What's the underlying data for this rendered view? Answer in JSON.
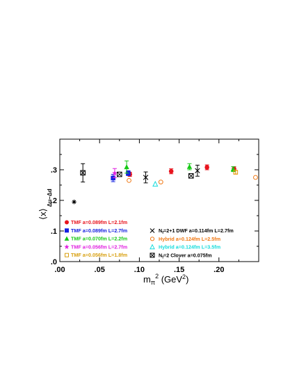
{
  "chart_data": {
    "type": "scatter",
    "title": "",
    "xlabel": "m",
    "xlabel_sub": "π",
    "xlabel_sup": "2",
    "xlabel_unit": " (GeV",
    "xlabel_unit_sup": "2",
    "xlabel_unit_close": ")",
    "ylabel": "⟨x⟩",
    "ylabel_sub": "Δu−Δd",
    "xlim": [
      0,
      0.25
    ],
    "ylim": [
      0,
      0.4
    ],
    "xticks": [
      0,
      0.05,
      0.1,
      0.15,
      0.2
    ],
    "xtick_labels": [
      ".00",
      ".05",
      ".10",
      ".15",
      ".20"
    ],
    "yticks": [
      0,
      0.1,
      0.2,
      0.3
    ],
    "ytick_labels": [
      ".0",
      ".1",
      ".2",
      ".3"
    ],
    "grid": false,
    "legend_position": "bottom",
    "series": [
      {
        "name": "TMF a=0.089fm L=2.1fm",
        "color": "#e8141e",
        "marker": "circle-filled",
        "points": [
          {
            "x": 0.088,
            "y": 0.285,
            "err": 0.007
          },
          {
            "x": 0.14,
            "y": 0.295,
            "err": 0.008
          },
          {
            "x": 0.185,
            "y": 0.308,
            "err": 0.008
          },
          {
            "x": 0.219,
            "y": 0.303,
            "err": 0.007
          }
        ]
      },
      {
        "name": "TMF a=0.089fm L=2.7fm",
        "color": "#1420e0",
        "marker": "square-filled",
        "points": [
          {
            "x": 0.067,
            "y": 0.273,
            "err": 0.012
          },
          {
            "x": 0.086,
            "y": 0.289,
            "err": 0.008
          }
        ]
      },
      {
        "name": "TMF a=0.070fm L=2.2fm",
        "color": "#14c814",
        "marker": "triangle-filled",
        "points": [
          {
            "x": 0.084,
            "y": 0.309,
            "err": 0.02
          },
          {
            "x": 0.163,
            "y": 0.31,
            "err": 0.01
          },
          {
            "x": 0.218,
            "y": 0.302,
            "err": 0.008
          }
        ]
      },
      {
        "name": "TMF a=0.056fm L=2.7fm",
        "color": "#e020e0",
        "marker": "star",
        "points": [
          {
            "x": 0.069,
            "y": 0.289,
            "err": 0.015
          }
        ]
      },
      {
        "name": "TMF a=0.056fm L=1.8fm",
        "color": "#e8960a",
        "marker": "square-open",
        "points": [
          {
            "x": 0.221,
            "y": 0.292,
            "err": 0.006
          }
        ]
      },
      {
        "name": "N_f=2+1 DWF a=0.114fm L=2.7fm",
        "color": "#000000",
        "marker": "x",
        "points": [
          {
            "x": 0.108,
            "y": 0.275,
            "err": 0.018
          },
          {
            "x": 0.173,
            "y": 0.297,
            "err": 0.018
          }
        ]
      },
      {
        "name": "Hybrid a=0.124fm L=2.5fm",
        "color": "#f07814",
        "marker": "circle-open",
        "points": [
          {
            "x": 0.087,
            "y": 0.265,
            "err": 0
          },
          {
            "x": 0.127,
            "y": 0.26,
            "err": 0
          },
          {
            "x": 0.246,
            "y": 0.275,
            "err": 0
          }
        ]
      },
      {
        "name": "Hybrid a=0.124fm L=3.5fm",
        "color": "#14dcdc",
        "marker": "triangle-open",
        "points": [
          {
            "x": 0.12,
            "y": 0.253,
            "err": 0
          }
        ]
      },
      {
        "name": "N_f=2 Clover a=0.075fm",
        "color": "#000000",
        "marker": "boxx",
        "points": [
          {
            "x": 0.029,
            "y": 0.29,
            "err": 0.03
          },
          {
            "x": 0.075,
            "y": 0.285,
            "err": 0
          },
          {
            "x": 0.165,
            "y": 0.28,
            "err": 0
          }
        ]
      },
      {
        "name": "",
        "color": "#000000",
        "marker": "asterisk",
        "points": [
          {
            "x": 0.018,
            "y": 0.195,
            "err": 0
          }
        ]
      }
    ],
    "legend_left": [
      {
        "text": "TMF a=0.089fm L=2.1fm",
        "color": "#e8141e",
        "marker": "circle-filled"
      },
      {
        "text": "TMF a=0.089fm L=2.7fm",
        "color": "#1420e0",
        "marker": "square-filled"
      },
      {
        "text": "TMF a=0.070fm L=2.2fm",
        "color": "#14c814",
        "marker": "triangle-filled"
      },
      {
        "text": "TMF a=0.056fm L=2.7fm",
        "color": "#e020e0",
        "marker": "star"
      },
      {
        "text": "TMF a=0.056fm L=1.8fm",
        "color": "#d8a010",
        "marker": "square-open"
      }
    ],
    "legend_right": [
      {
        "pre": "N",
        "sub": "f",
        "post": "=2+1 DWF a=0.114fm L=2.7fm",
        "color": "#000000",
        "marker": "x"
      },
      {
        "pre": "Hybrid a=0.124fm L=2.5fm",
        "sub": "",
        "post": "",
        "color": "#f07814",
        "marker": "circle-open"
      },
      {
        "pre": "Hybrid a=0.124fm L=3.5fm",
        "sub": "",
        "post": "",
        "color": "#14dcdc",
        "marker": "triangle-open"
      },
      {
        "pre": "N",
        "sub": "f",
        "post": "=2 Clover a=0.075fm",
        "color": "#000000",
        "marker": "boxx"
      }
    ]
  }
}
